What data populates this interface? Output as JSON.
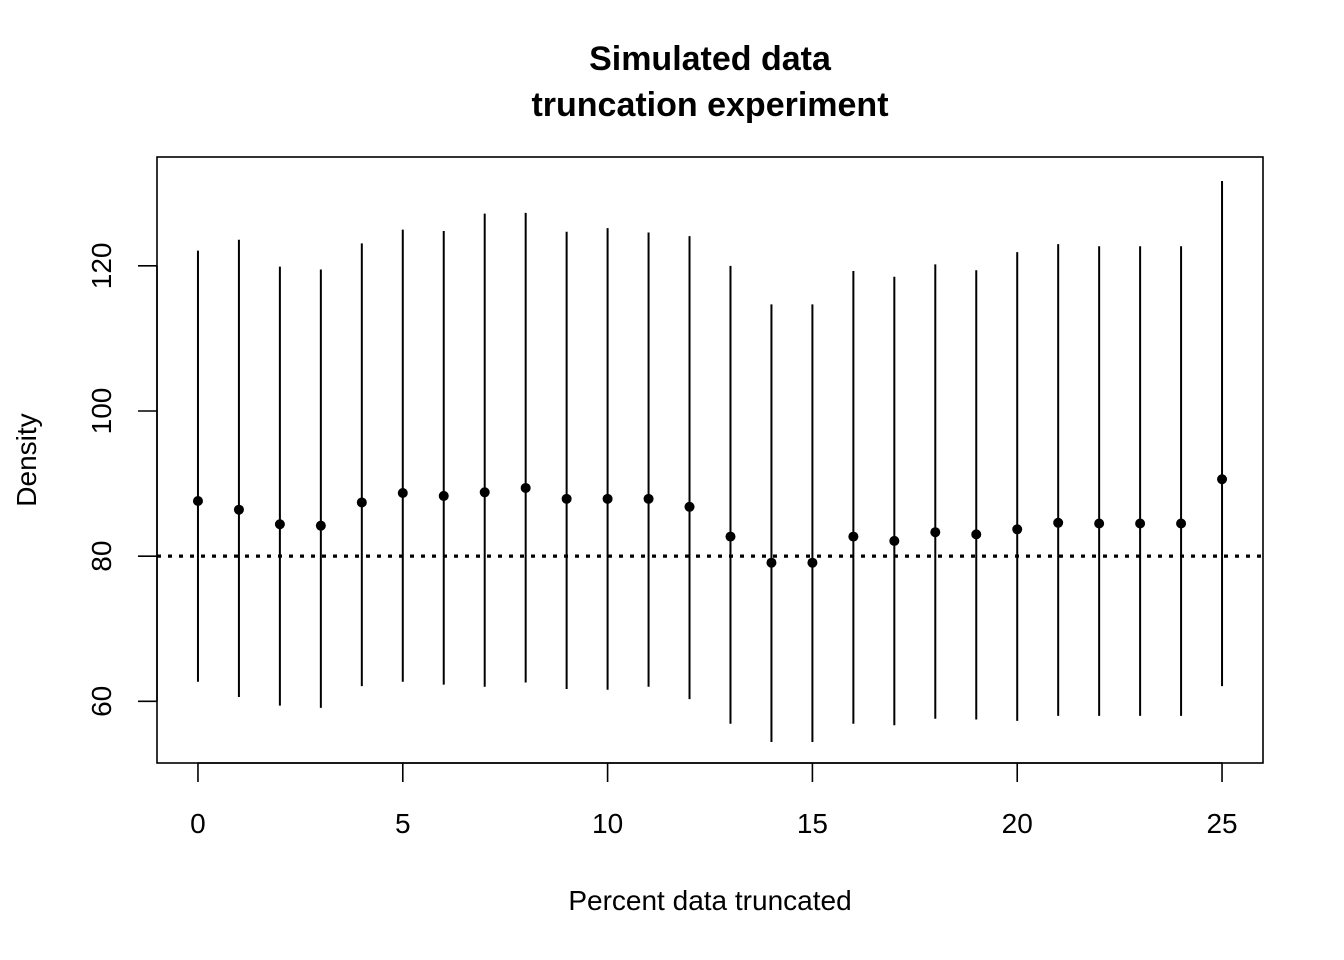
{
  "chart_data": {
    "type": "scatter",
    "title": [
      "Simulated data",
      "truncation experiment"
    ],
    "xlabel": "Percent data truncated",
    "ylabel": "Density",
    "xlim": [
      -1,
      26
    ],
    "ylim": [
      51.5,
      135
    ],
    "xticks": [
      0,
      5,
      10,
      15,
      20,
      25
    ],
    "yticks": [
      60,
      80,
      100,
      120
    ],
    "reference_line": {
      "y": 80,
      "style": "dotted"
    },
    "grid": false,
    "legend": "none",
    "series": [
      {
        "x": [
          0,
          1,
          2,
          3,
          4,
          5,
          6,
          7,
          8,
          9,
          10,
          11,
          12,
          13,
          14,
          15,
          16,
          17,
          18,
          19,
          20,
          21,
          22,
          23,
          24,
          25
        ],
        "y": [
          87.6,
          86.4,
          84.4,
          84.2,
          87.4,
          88.7,
          88.3,
          88.8,
          89.4,
          87.9,
          87.9,
          87.9,
          86.8,
          82.7,
          79.1,
          79.1,
          82.7,
          82.1,
          83.3,
          83.0,
          83.7,
          84.6,
          84.5,
          84.5,
          84.5,
          90.6
        ],
        "lower": [
          62.7,
          60.6,
          59.4,
          59.1,
          62.1,
          62.7,
          62.3,
          62.0,
          62.6,
          61.7,
          61.6,
          62.0,
          60.3,
          56.9,
          54.4,
          54.4,
          56.9,
          56.7,
          57.6,
          57.5,
          57.3,
          58.0,
          58.0,
          58.0,
          58.0,
          62.1
        ],
        "upper": [
          122.1,
          123.6,
          119.9,
          119.5,
          123.1,
          125.0,
          124.8,
          127.2,
          127.3,
          124.7,
          125.2,
          124.6,
          124.1,
          120.0,
          114.7,
          114.7,
          119.3,
          118.5,
          120.2,
          119.4,
          121.9,
          123.0,
          122.7,
          122.7,
          122.7,
          131.7
        ]
      }
    ]
  }
}
